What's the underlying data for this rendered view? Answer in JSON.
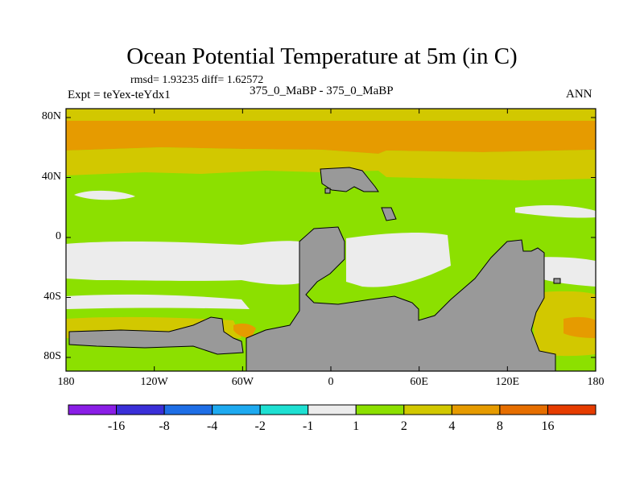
{
  "title": "Ocean Potential Temperature at 5m (in C)",
  "stats": "rmsd= 1.93235 diff= 1.62572",
  "expt": "Expt = teYex-teYdx1",
  "center_label": "375_0_MaBP - 375_0_MaBP",
  "season": "ANN",
  "map": {
    "y_ticks": [
      {
        "label": "80N",
        "lat": 80
      },
      {
        "label": "40N",
        "lat": 40
      },
      {
        "label": "0",
        "lat": 0
      },
      {
        "label": "40S",
        "lat": -40
      },
      {
        "label": "80S",
        "lat": -80
      }
    ],
    "x_ticks": [
      {
        "label": "180",
        "lon": -180
      },
      {
        "label": "120W",
        "lon": -120
      },
      {
        "label": "60W",
        "lon": -60
      },
      {
        "label": "0",
        "lon": 0
      },
      {
        "label": "60E",
        "lon": 60
      },
      {
        "label": "120E",
        "lon": 120
      },
      {
        "label": "180",
        "lon": 180
      }
    ]
  },
  "colorbar": {
    "colors": [
      "#8a1ee6",
      "#3a2fd8",
      "#1e6ee6",
      "#1eaaf0",
      "#1ee0d2",
      "#ececec",
      "#8ce000",
      "#d2c800",
      "#e69b00",
      "#e66e00",
      "#e63c00"
    ],
    "labels": [
      "-16",
      "-8",
      "-4",
      "-2",
      "-1",
      "1",
      "2",
      "4",
      "8",
      "16"
    ]
  }
}
